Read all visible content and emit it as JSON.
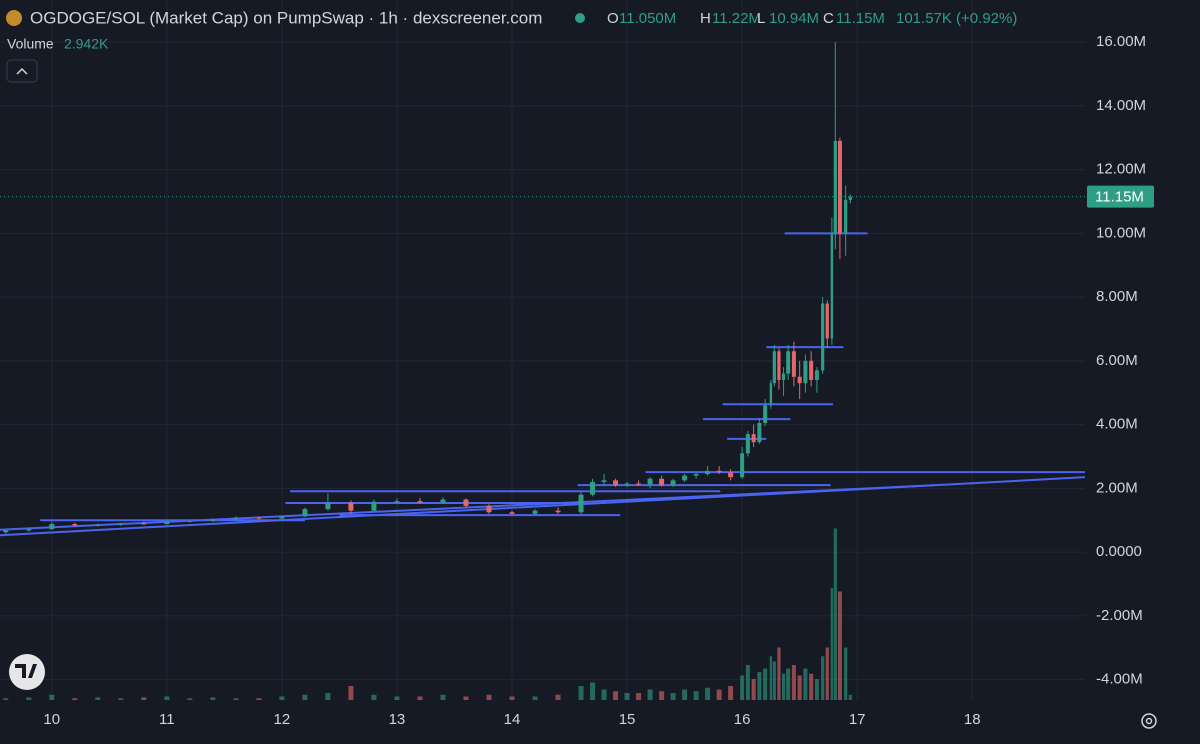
{
  "chart_data": {
    "type": "candlestick",
    "title": "OGDOGE/SOL (Market Cap) on PumpSwap · 1h · dexscreener.com",
    "legend": {
      "labels": [
        "O",
        "H",
        "L",
        "C"
      ],
      "values": [
        "11.050M",
        "11.22M",
        "10.94M",
        "11.15M"
      ],
      "change": "101.57K (+0.92%)"
    },
    "volume_label": "Volume",
    "volume_value": "2.942K",
    "up_color": "#2e9e86",
    "down_color": "#e5676b",
    "line_color": "#4a63f0",
    "x": [
      9.6,
      9.8,
      10.0,
      10.2,
      10.4,
      10.6,
      10.8,
      11.0,
      11.2,
      11.4,
      11.6,
      11.8,
      12.0,
      12.2,
      12.4,
      12.6,
      12.8,
      13.0,
      13.2,
      13.4,
      13.6,
      13.8,
      14.0,
      14.2,
      14.4,
      14.6,
      14.7,
      14.8,
      14.9,
      15.0,
      15.1,
      15.2,
      15.3,
      15.4,
      15.5,
      15.6,
      15.7,
      15.8,
      15.9,
      16.0,
      16.05,
      16.1,
      16.15,
      16.2,
      16.25,
      16.28,
      16.32,
      16.36,
      16.4,
      16.45,
      16.5,
      16.55,
      16.6,
      16.65,
      16.7,
      16.74,
      16.78,
      16.81,
      16.85,
      16.9,
      16.94
    ],
    "open": [
      0.62,
      0.68,
      0.72,
      0.88,
      0.84,
      0.86,
      0.9,
      0.88,
      0.96,
      0.98,
      1.02,
      1.08,
      1.05,
      1.12,
      1.35,
      1.55,
      1.3,
      1.58,
      1.6,
      1.55,
      1.65,
      1.45,
      1.25,
      1.2,
      1.3,
      1.25,
      1.8,
      2.2,
      2.25,
      2.1,
      2.15,
      2.12,
      2.3,
      2.1,
      2.25,
      2.4,
      2.45,
      2.55,
      2.5,
      2.35,
      3.1,
      3.7,
      3.45,
      4.05,
      4.6,
      5.3,
      6.3,
      5.4,
      5.6,
      6.3,
      5.5,
      5.3,
      6.0,
      5.4,
      5.7,
      7.8,
      6.7,
      10.0,
      12.9,
      10.0,
      11.05
    ],
    "high": [
      0.7,
      0.75,
      0.95,
      0.92,
      0.9,
      0.92,
      0.96,
      0.98,
      1.02,
      1.05,
      1.12,
      1.12,
      1.15,
      1.4,
      1.85,
      1.62,
      1.65,
      1.68,
      1.7,
      1.72,
      1.68,
      1.5,
      1.3,
      1.35,
      1.4,
      1.9,
      2.3,
      2.45,
      2.3,
      2.2,
      2.25,
      2.35,
      2.4,
      2.3,
      2.45,
      2.5,
      2.7,
      2.7,
      2.6,
      3.3,
      3.8,
      4.0,
      4.2,
      4.8,
      5.4,
      6.5,
      6.4,
      5.8,
      6.5,
      6.6,
      6.0,
      6.2,
      6.3,
      5.8,
      8.0,
      7.9,
      10.5,
      16.0,
      13.0,
      11.5,
      11.22
    ],
    "low": [
      0.58,
      0.64,
      0.7,
      0.8,
      0.8,
      0.82,
      0.86,
      0.86,
      0.92,
      0.95,
      1.0,
      1.02,
      1.02,
      1.1,
      1.3,
      1.2,
      1.28,
      1.5,
      1.52,
      1.5,
      1.4,
      1.2,
      1.15,
      1.15,
      1.2,
      1.18,
      1.75,
      2.1,
      2.05,
      2.05,
      2.08,
      2.0,
      2.05,
      2.05,
      2.2,
      2.3,
      2.4,
      2.45,
      2.25,
      2.3,
      3.0,
      3.3,
      3.4,
      3.95,
      4.5,
      5.2,
      5.1,
      4.9,
      5.4,
      5.2,
      4.8,
      5.0,
      5.2,
      5.0,
      5.6,
      6.4,
      6.5,
      9.5,
      9.2,
      9.3,
      10.94
    ],
    "close": [
      0.68,
      0.72,
      0.88,
      0.84,
      0.86,
      0.9,
      0.88,
      0.96,
      0.98,
      1.02,
      1.08,
      1.05,
      1.12,
      1.35,
      1.55,
      1.3,
      1.58,
      1.6,
      1.55,
      1.65,
      1.45,
      1.25,
      1.2,
      1.3,
      1.25,
      1.8,
      2.2,
      2.25,
      2.1,
      2.15,
      2.12,
      2.3,
      2.1,
      2.25,
      2.4,
      2.45,
      2.55,
      2.5,
      2.35,
      3.1,
      3.7,
      3.45,
      4.05,
      4.6,
      5.3,
      6.3,
      5.4,
      5.6,
      6.3,
      5.5,
      5.3,
      6.0,
      5.4,
      5.7,
      7.8,
      6.7,
      10.0,
      12.9,
      10.0,
      11.05,
      11.15
    ],
    "volume": {
      "axis": "y2",
      "values": [
        1,
        1.5,
        3,
        1,
        1.5,
        1,
        1.5,
        2,
        1,
        1.5,
        1,
        1,
        2,
        3,
        4,
        8,
        3,
        2,
        2,
        3,
        2,
        3,
        2,
        2,
        3,
        8,
        10,
        6,
        5,
        4,
        4,
        6,
        5,
        4,
        6,
        5,
        7,
        6,
        8,
        14,
        20,
        12,
        16,
        18,
        25,
        22,
        30,
        15,
        18,
        20,
        14,
        18,
        15,
        12,
        25,
        30,
        64,
        98,
        62,
        30,
        2.942
      ]
    },
    "drawings": [
      {
        "x": [
          16.37,
          17.09
        ],
        "y": [
          10.0,
          10.0
        ]
      },
      {
        "x": [
          16.21,
          16.88
        ],
        "y": [
          6.43,
          6.43
        ]
      },
      {
        "x": [
          15.83,
          16.79
        ],
        "y": [
          4.64,
          4.64
        ]
      },
      {
        "x": [
          15.66,
          16.42
        ],
        "y": [
          4.17,
          4.17
        ]
      },
      {
        "x": [
          15.87,
          16.21
        ],
        "y": [
          3.55,
          3.55
        ]
      },
      {
        "x": [
          15.16,
          18.98
        ],
        "y": [
          2.51,
          2.51
        ]
      },
      {
        "x": [
          14.57,
          16.77
        ],
        "y": [
          2.1,
          2.1
        ]
      },
      {
        "x": [
          12.07,
          15.81
        ],
        "y": [
          1.91,
          1.91
        ]
      },
      {
        "x": [
          12.03,
          14.6
        ],
        "y": [
          1.54,
          1.54
        ]
      },
      {
        "x": [
          9.9,
          12.2
        ],
        "y": [
          1.0,
          1.0
        ]
      },
      {
        "x": [
          12.5,
          14.94
        ],
        "y": [
          1.16,
          1.16
        ]
      },
      {
        "x": [
          9.55,
          18.98
        ],
        "y": [
          0.53,
          2.35
        ]
      },
      {
        "x": [
          9.55,
          17.68
        ],
        "y": [
          0.7,
          2.1
        ]
      }
    ],
    "xlim": [
      9.55,
      18.98
    ],
    "xticks": [
      10,
      11,
      12,
      13,
      14,
      15,
      16,
      17,
      18
    ],
    "ylim": [
      -4.64,
      17.32
    ],
    "yticks": [
      {
        "value": 16,
        "label": "16.00M"
      },
      {
        "value": 14,
        "label": "14.00M"
      },
      {
        "value": 12,
        "label": "12.00M"
      },
      {
        "value": 10,
        "label": "10.00M"
      },
      {
        "value": 8,
        "label": "8.00M"
      },
      {
        "value": 6,
        "label": "6.00M"
      },
      {
        "value": 4,
        "label": "4.00M"
      },
      {
        "value": 2,
        "label": "2.00M"
      },
      {
        "value": 0,
        "label": "0.0000"
      },
      {
        "value": -2,
        "label": "-2.00M"
      },
      {
        "value": -4,
        "label": "-4.00M"
      }
    ],
    "y2lim": [
      0,
      400
    ],
    "grid": true
  }
}
